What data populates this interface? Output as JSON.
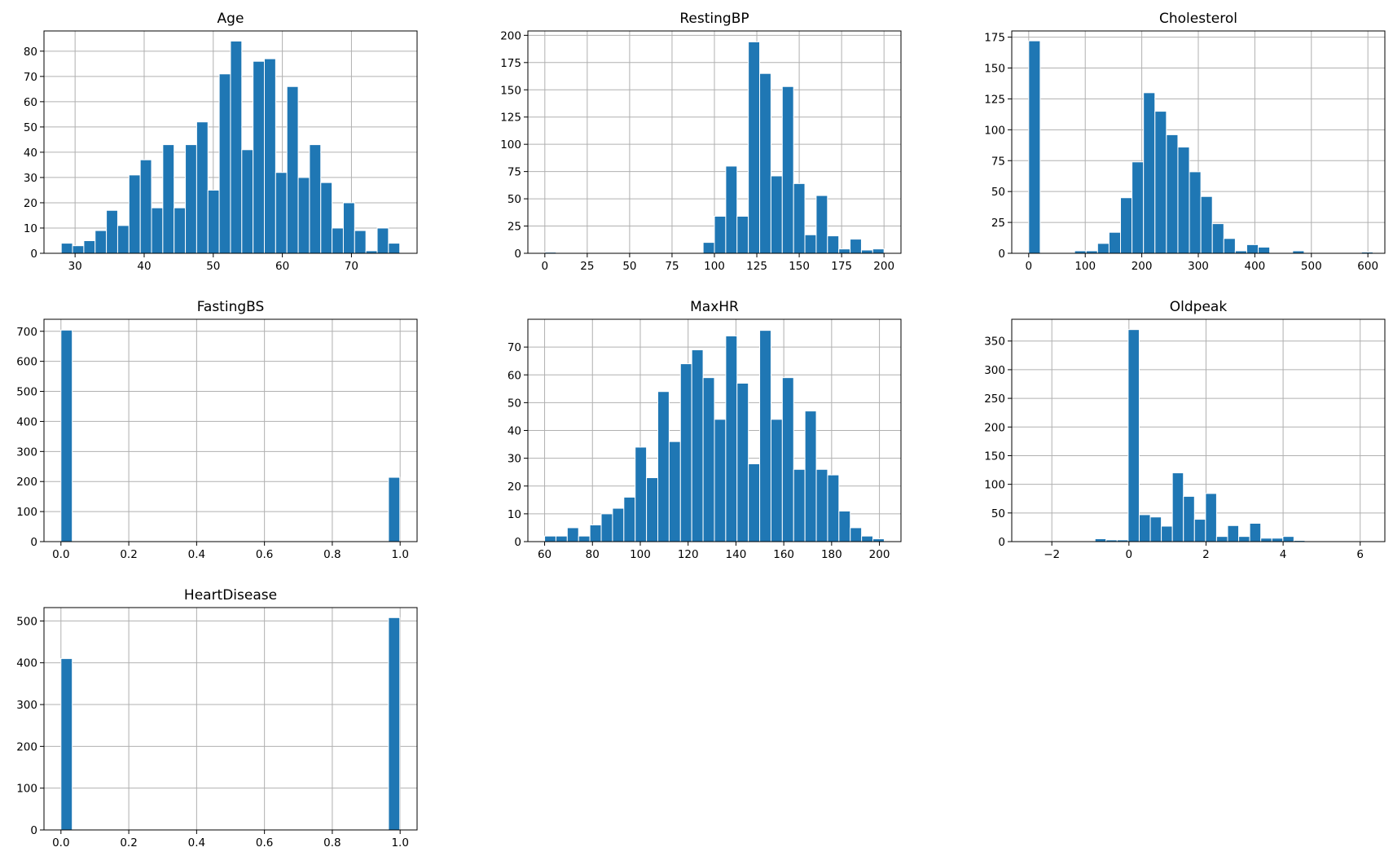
{
  "figure": {
    "accent_color": "#1f77b4",
    "grid_color": "#b0b0b0",
    "background": "#ffffff"
  },
  "chart_data": [
    {
      "type": "bar",
      "title": "Age",
      "xlim": [
        25.5,
        79.5
      ],
      "ylim": [
        0,
        88
      ],
      "xticks": [
        30,
        40,
        50,
        60,
        70
      ],
      "xtick_labels": [
        "30",
        "40",
        "50",
        "60",
        "70"
      ],
      "yticks": [
        0,
        10,
        20,
        30,
        40,
        50,
        60,
        70,
        80
      ],
      "ytick_labels": [
        "0",
        "10",
        "20",
        "30",
        "40",
        "50",
        "60",
        "70",
        "80"
      ],
      "bin_start": 28,
      "bin_width": 1.633,
      "values": [
        4,
        3,
        5,
        9,
        17,
        11,
        31,
        37,
        18,
        43,
        18,
        43,
        52,
        25,
        71,
        84,
        41,
        76,
        77,
        32,
        66,
        30,
        43,
        28,
        10,
        20,
        9,
        1,
        10,
        4
      ]
    },
    {
      "type": "bar",
      "title": "RestingBP",
      "xlim": [
        -10,
        210
      ],
      "ylim": [
        0,
        204
      ],
      "xticks": [
        0,
        25,
        50,
        75,
        100,
        125,
        150,
        175,
        200
      ],
      "xtick_labels": [
        "0",
        "25",
        "50",
        "75",
        "100",
        "125",
        "150",
        "175",
        "200"
      ],
      "yticks": [
        0,
        25,
        50,
        75,
        100,
        125,
        150,
        175,
        200
      ],
      "ytick_labels": [
        "0",
        "25",
        "50",
        "75",
        "100",
        "125",
        "150",
        "175",
        "200"
      ],
      "bin_start": 0,
      "bin_width": 6.667,
      "values": [
        1,
        0,
        0,
        0,
        0,
        0,
        0,
        0,
        0,
        0,
        0,
        0,
        0,
        0,
        10,
        34,
        80,
        34,
        194,
        165,
        71,
        153,
        64,
        17,
        53,
        16,
        4,
        13,
        3,
        4
      ]
    },
    {
      "type": "bar",
      "title": "Cholesterol",
      "xlim": [
        -30,
        630
      ],
      "ylim": [
        0,
        180
      ],
      "xticks": [
        0,
        100,
        200,
        300,
        400,
        500,
        600
      ],
      "xtick_labels": [
        "0",
        "100",
        "200",
        "300",
        "400",
        "500",
        "600"
      ],
      "yticks": [
        0,
        25,
        50,
        75,
        100,
        125,
        150,
        175
      ],
      "ytick_labels": [
        "0",
        "25",
        "50",
        "75",
        "100",
        "125",
        "150",
        "175"
      ],
      "bin_start": 0,
      "bin_width": 20.3,
      "values": [
        172,
        0,
        0,
        0,
        2,
        2,
        8,
        17,
        45,
        74,
        130,
        115,
        96,
        86,
        66,
        46,
        24,
        12,
        2,
        7,
        5,
        0,
        0,
        2,
        0,
        0,
        0,
        0,
        0,
        1
      ]
    },
    {
      "type": "bar",
      "title": "FastingBS",
      "xlim": [
        -0.05,
        1.05
      ],
      "ylim": [
        0,
        740
      ],
      "xticks": [
        0,
        0.2,
        0.4,
        0.6,
        0.8,
        1
      ],
      "xtick_labels": [
        "0.0",
        "0.2",
        "0.4",
        "0.6",
        "0.8",
        "1.0"
      ],
      "yticks": [
        0,
        100,
        200,
        300,
        400,
        500,
        600,
        700
      ],
      "ytick_labels": [
        "0",
        "100",
        "200",
        "300",
        "400",
        "500",
        "600",
        "700"
      ],
      "bin_start": 0,
      "bin_width": 0.0333,
      "values": [
        704,
        0,
        0,
        0,
        0,
        0,
        0,
        0,
        0,
        0,
        0,
        0,
        0,
        0,
        0,
        0,
        0,
        0,
        0,
        0,
        0,
        0,
        0,
        0,
        0,
        0,
        0,
        0,
        0,
        214
      ]
    },
    {
      "type": "bar",
      "title": "MaxHR",
      "xlim": [
        53,
        209
      ],
      "ylim": [
        0,
        80
      ],
      "xticks": [
        60,
        80,
        100,
        120,
        140,
        160,
        180,
        200
      ],
      "xtick_labels": [
        "60",
        "80",
        "100",
        "120",
        "140",
        "160",
        "180",
        "200"
      ],
      "yticks": [
        0,
        10,
        20,
        30,
        40,
        50,
        60,
        70
      ],
      "ytick_labels": [
        "0",
        "10",
        "20",
        "30",
        "40",
        "50",
        "60",
        "70"
      ],
      "bin_start": 60,
      "bin_width": 4.733,
      "values": [
        2,
        2,
        5,
        2,
        6,
        10,
        12,
        16,
        34,
        23,
        54,
        36,
        64,
        69,
        59,
        44,
        74,
        57,
        28,
        76,
        44,
        59,
        26,
        47,
        26,
        24,
        11,
        5,
        2,
        1
      ]
    },
    {
      "type": "bar",
      "title": "Oldpeak",
      "xlim": [
        -3.04,
        6.64
      ],
      "ylim": [
        0,
        388
      ],
      "xticks": [
        -2,
        0,
        2,
        4,
        6
      ],
      "xtick_labels": [
        "−2",
        "0",
        "2",
        "4",
        "6"
      ],
      "yticks": [
        0,
        50,
        100,
        150,
        200,
        250,
        300,
        350
      ],
      "ytick_labels": [
        "0",
        "50",
        "100",
        "150",
        "200",
        "250",
        "300",
        "350"
      ],
      "bin_start": -2.6,
      "bin_width": 0.2867,
      "values": [
        1,
        0,
        0,
        0,
        0,
        1,
        5,
        3,
        3,
        370,
        47,
        43,
        27,
        120,
        79,
        39,
        84,
        9,
        28,
        9,
        32,
        6,
        6,
        9,
        2,
        0,
        0,
        0,
        0,
        1
      ]
    },
    {
      "type": "bar",
      "title": "HeartDisease",
      "xlim": [
        -0.05,
        1.05
      ],
      "ylim": [
        0,
        532
      ],
      "xticks": [
        0,
        0.2,
        0.4,
        0.6,
        0.8,
        1
      ],
      "xtick_labels": [
        "0.0",
        "0.2",
        "0.4",
        "0.6",
        "0.8",
        "1.0"
      ],
      "yticks": [
        0,
        100,
        200,
        300,
        400,
        500
      ],
      "ytick_labels": [
        "0",
        "100",
        "200",
        "300",
        "400",
        "500"
      ],
      "bin_start": 0,
      "bin_width": 0.0333,
      "values": [
        410,
        0,
        0,
        0,
        0,
        0,
        0,
        0,
        0,
        0,
        0,
        0,
        0,
        0,
        0,
        0,
        0,
        0,
        0,
        0,
        0,
        0,
        0,
        0,
        0,
        0,
        0,
        0,
        0,
        508
      ]
    }
  ]
}
